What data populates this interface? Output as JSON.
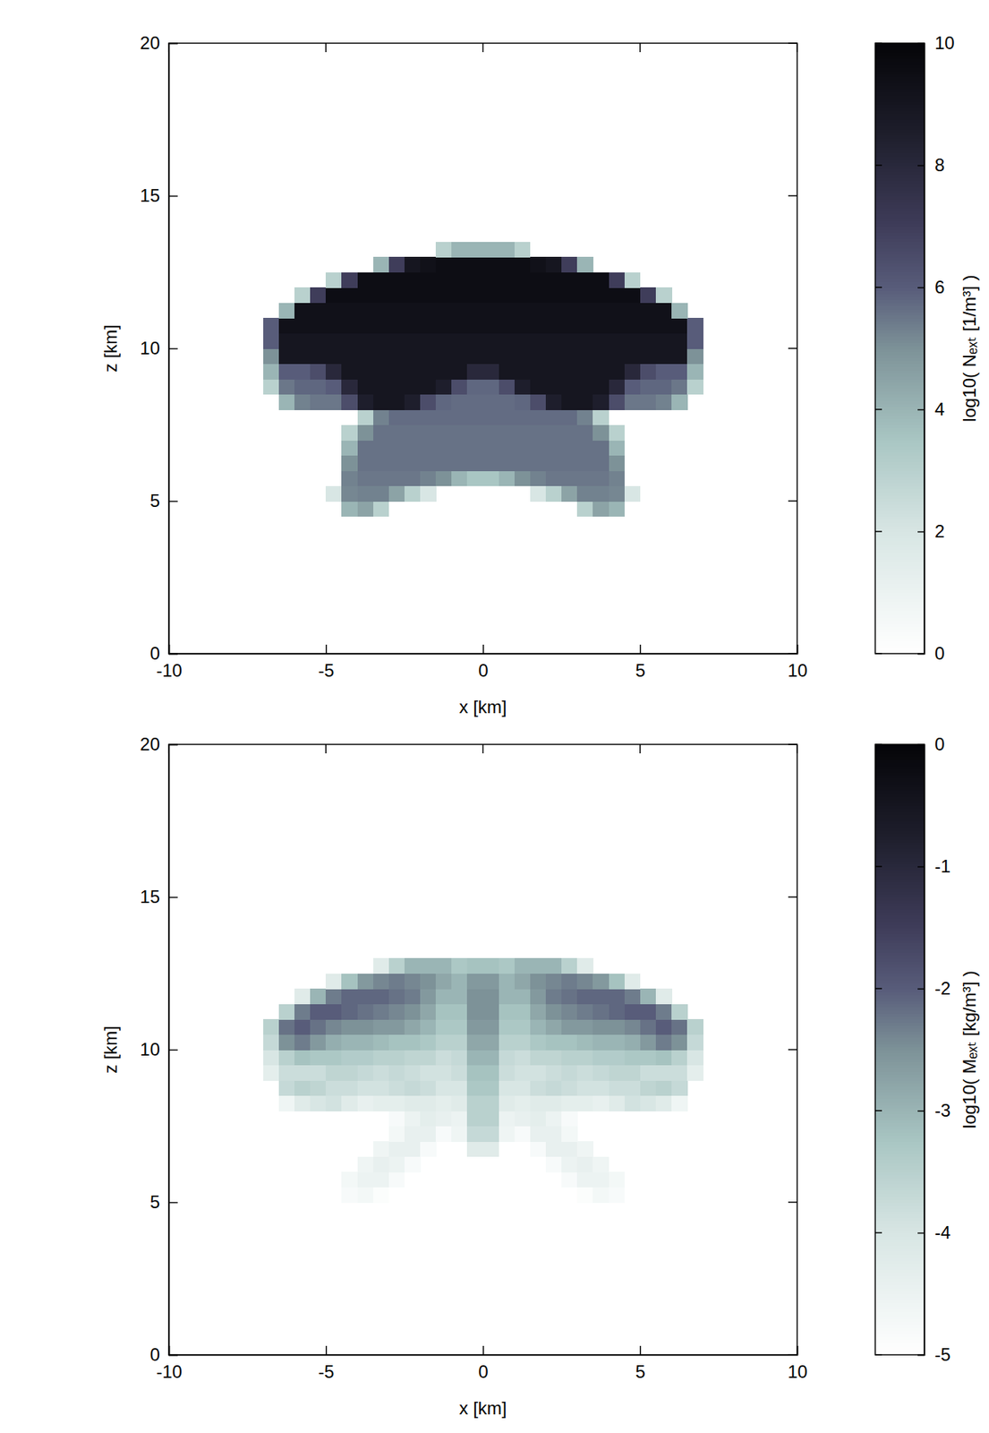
{
  "chart_data": [
    {
      "type": "heatmap",
      "xlabel": "x [km]",
      "ylabel": "z [km]",
      "xlim": [
        -10,
        10
      ],
      "ylim": [
        0,
        20
      ],
      "xticks": [
        -10,
        -5,
        0,
        5,
        10
      ],
      "yticks": [
        0,
        5,
        10,
        15,
        20
      ],
      "x": [
        -6.75,
        -6.25,
        -5.75,
        -5.25,
        -4.75,
        -4.25,
        -3.75,
        -3.25,
        -2.75,
        -2.25,
        -1.75,
        -1.25,
        -0.75,
        -0.25,
        0.25,
        0.75,
        1.25,
        1.75,
        2.25,
        2.75,
        3.25,
        3.75,
        4.25,
        4.75,
        5.25,
        5.75,
        6.25,
        6.75
      ],
      "y": [
        4.75,
        5.25,
        5.75,
        6.25,
        6.75,
        7.25,
        7.75,
        8.25,
        8.75,
        9.25,
        9.75,
        10.25,
        10.75,
        11.25,
        11.75,
        12.25,
        12.75,
        13.25
      ],
      "values": [
        [
          null,
          null,
          null,
          null,
          null,
          4,
          4.5,
          3,
          null,
          null,
          null,
          null,
          null,
          null,
          null,
          null,
          null,
          null,
          null,
          null,
          3,
          4.5,
          4,
          null,
          null,
          null,
          null,
          null
        ],
        [
          null,
          null,
          null,
          null,
          2,
          5.2,
          5.3,
          5.3,
          4.5,
          3,
          2,
          null,
          null,
          null,
          null,
          null,
          null,
          2,
          3,
          4.5,
          5.3,
          5.3,
          5.2,
          2,
          null,
          null,
          null,
          null
        ],
        [
          null,
          null,
          null,
          null,
          null,
          5.3,
          5.5,
          5.5,
          5.5,
          5.5,
          5.3,
          5,
          4,
          3.5,
          3.5,
          4,
          5,
          5.3,
          5.5,
          5.5,
          5.5,
          5.5,
          5.3,
          null,
          null,
          null,
          null,
          null
        ],
        [
          null,
          null,
          null,
          null,
          null,
          5,
          5.6,
          5.6,
          5.6,
          5.6,
          5.6,
          5.6,
          5.6,
          5.6,
          5.6,
          5.6,
          5.6,
          5.6,
          5.6,
          5.6,
          5.6,
          5.6,
          5,
          null,
          null,
          null,
          null,
          null
        ],
        [
          null,
          null,
          null,
          null,
          null,
          4,
          5.6,
          5.6,
          5.6,
          5.6,
          5.6,
          5.6,
          5.6,
          5.6,
          5.6,
          5.6,
          5.6,
          5.6,
          5.6,
          5.6,
          5.6,
          5.6,
          4,
          null,
          null,
          null,
          null,
          null
        ],
        [
          null,
          null,
          null,
          null,
          null,
          3,
          5,
          5.6,
          5.6,
          5.6,
          5.6,
          5.6,
          5.6,
          5.6,
          5.6,
          5.6,
          5.6,
          5.6,
          5.6,
          5.6,
          5.6,
          5,
          3,
          null,
          null,
          null,
          null,
          null
        ],
        [
          null,
          null,
          null,
          null,
          null,
          null,
          3,
          5.3,
          5.7,
          5.7,
          5.7,
          5.7,
          5.7,
          5.7,
          5.7,
          5.7,
          5.7,
          5.7,
          5.7,
          5.7,
          5.3,
          3,
          null,
          null,
          null,
          null,
          null,
          null
        ],
        [
          null,
          4,
          5.3,
          5.5,
          5.5,
          6.5,
          8.5,
          9,
          9,
          8.5,
          6.5,
          5.8,
          5.7,
          5.7,
          5.7,
          5.7,
          5.8,
          6.5,
          8.5,
          9,
          9,
          8.5,
          6.5,
          5.5,
          5.5,
          5.3,
          4,
          null
        ],
        [
          3,
          5.5,
          5.8,
          5.8,
          6,
          8,
          9,
          9,
          9,
          9,
          9,
          8.5,
          6.5,
          5.8,
          5.8,
          6.5,
          8.5,
          9,
          9,
          9,
          9,
          9,
          8,
          6,
          5.8,
          5.8,
          5.5,
          3
        ],
        [
          4,
          6,
          6,
          6.5,
          8,
          9,
          9,
          9,
          9,
          9,
          9,
          9,
          9,
          8,
          8,
          9,
          9,
          9,
          9,
          9,
          9,
          9,
          9,
          8,
          6.5,
          6,
          6,
          4
        ],
        [
          5,
          9,
          9,
          9,
          9,
          9,
          9,
          9,
          9,
          9,
          9,
          9,
          9,
          9,
          9,
          9,
          9,
          9,
          9,
          9,
          9,
          9,
          9,
          9,
          9,
          9,
          9,
          5
        ],
        [
          6,
          9,
          9,
          9,
          9,
          9,
          9,
          9,
          9,
          9,
          9,
          9,
          9,
          9,
          9,
          9,
          9,
          9,
          9,
          9,
          9,
          9,
          9,
          9,
          9,
          9,
          9,
          6
        ],
        [
          6,
          9.3,
          9.3,
          9.3,
          9.3,
          9.3,
          9.3,
          9.3,
          9.3,
          9.3,
          9.3,
          9.3,
          9.3,
          9.3,
          9.3,
          9.3,
          9.3,
          9.3,
          9.3,
          9.3,
          9.3,
          9.3,
          9.3,
          9.3,
          9.3,
          9.3,
          9.3,
          6
        ],
        [
          null,
          4,
          9.3,
          9.3,
          9.3,
          9.3,
          9.3,
          9.3,
          9.3,
          9.3,
          9.3,
          9.3,
          9.3,
          9.3,
          9.3,
          9.3,
          9.3,
          9.3,
          9.3,
          9.3,
          9.3,
          9.3,
          9.3,
          9.3,
          9.3,
          9.3,
          4,
          null
        ],
        [
          null,
          null,
          3,
          7,
          9.5,
          9.5,
          9.5,
          9.5,
          9.5,
          9.5,
          9.5,
          9.5,
          9.5,
          9.5,
          9.5,
          9.5,
          9.5,
          9.5,
          9.5,
          9.5,
          9.5,
          9.5,
          9.5,
          9.5,
          7,
          3,
          null,
          null
        ],
        [
          null,
          null,
          null,
          null,
          3,
          7,
          9.5,
          9.5,
          9.5,
          9.5,
          9.5,
          9.5,
          9.5,
          9.5,
          9.5,
          9.5,
          9.5,
          9.5,
          9.5,
          9.5,
          9.5,
          9.5,
          7,
          3,
          null,
          null,
          null,
          null
        ],
        [
          null,
          null,
          null,
          null,
          null,
          null,
          null,
          4,
          7,
          9,
          9.3,
          9.5,
          9.5,
          9.5,
          9.5,
          9.5,
          9.5,
          9.3,
          9,
          7,
          4,
          null,
          null,
          null,
          null,
          null,
          null,
          null
        ],
        [
          null,
          null,
          null,
          null,
          null,
          null,
          null,
          null,
          null,
          null,
          null,
          3,
          4,
          4,
          4,
          4,
          3,
          null,
          null,
          null,
          null,
          null,
          null,
          null,
          null,
          null,
          null,
          null
        ]
      ],
      "colorbar": {
        "label": "log10( Nₑₓₜ [1/m³] )",
        "range": [
          0,
          10
        ],
        "ticks": [
          0,
          2,
          4,
          6,
          8,
          10
        ]
      }
    },
    {
      "type": "heatmap",
      "xlabel": "x [km]",
      "ylabel": "z [km]",
      "xlim": [
        -10,
        10
      ],
      "ylim": [
        0,
        20
      ],
      "xticks": [
        -10,
        -5,
        0,
        5,
        10
      ],
      "yticks": [
        0,
        5,
        10,
        15,
        20
      ],
      "x": [
        -6.75,
        -6.25,
        -5.75,
        -5.25,
        -4.75,
        -4.25,
        -3.75,
        -3.25,
        -2.75,
        -2.25,
        -1.75,
        -1.25,
        -0.75,
        -0.25,
        0.25,
        0.75,
        1.25,
        1.75,
        2.25,
        2.75,
        3.25,
        3.75,
        4.25,
        4.75,
        5.25,
        5.75,
        6.25,
        6.75
      ],
      "y": [
        4.75,
        5.25,
        5.75,
        6.25,
        6.75,
        7.25,
        7.75,
        8.25,
        8.75,
        9.25,
        9.75,
        10.25,
        10.75,
        11.25,
        11.75,
        12.25,
        12.75,
        13.25
      ],
      "values": [
        [
          null,
          null,
          null,
          null,
          null,
          null,
          null,
          null,
          null,
          null,
          null,
          null,
          null,
          null,
          null,
          null,
          null,
          null,
          null,
          null,
          null,
          null,
          null,
          null,
          null,
          null,
          null,
          null
        ],
        [
          null,
          null,
          null,
          null,
          null,
          -4.8,
          -4.7,
          -4.9,
          null,
          null,
          null,
          null,
          null,
          null,
          null,
          null,
          null,
          null,
          null,
          null,
          -4.9,
          -4.7,
          -4.8,
          null,
          null,
          null,
          null,
          null
        ],
        [
          null,
          null,
          null,
          null,
          null,
          -4.7,
          -4.5,
          -4.5,
          -4.8,
          null,
          null,
          null,
          null,
          null,
          null,
          null,
          null,
          null,
          null,
          -4.8,
          -4.5,
          -4.5,
          -4.7,
          null,
          null,
          null,
          null,
          null
        ],
        [
          null,
          null,
          null,
          null,
          null,
          null,
          -4.6,
          -4.4,
          -4.5,
          -4.8,
          null,
          null,
          null,
          null,
          null,
          null,
          null,
          null,
          -4.8,
          -4.5,
          -4.4,
          -4.6,
          null,
          null,
          null,
          null,
          null,
          null
        ],
        [
          null,
          null,
          null,
          null,
          null,
          null,
          null,
          -4.6,
          -4.4,
          -4.4,
          -4.8,
          null,
          null,
          -4.2,
          -4.2,
          null,
          null,
          -4.8,
          -4.4,
          -4.4,
          -4.6,
          null,
          null,
          null,
          null,
          null,
          null,
          null
        ],
        [
          null,
          null,
          null,
          null,
          null,
          null,
          null,
          null,
          -4.7,
          -4.4,
          -4.4,
          -4.8,
          -4.6,
          -3.7,
          -3.7,
          -4.6,
          -4.8,
          -4.4,
          -4.4,
          -4.7,
          null,
          null,
          null,
          null,
          null,
          null,
          null,
          null
        ],
        [
          null,
          null,
          null,
          null,
          null,
          null,
          null,
          null,
          -4.8,
          -4.5,
          -4.3,
          -4.4,
          -4.5,
          -3.5,
          -3.5,
          -4.5,
          -4.4,
          -4.3,
          -4.5,
          -4.8,
          null,
          null,
          null,
          null,
          null,
          null,
          null,
          null
        ],
        [
          null,
          -4.6,
          -4.2,
          -4,
          -3.9,
          -4.2,
          -4.4,
          -4.3,
          -4.3,
          -4.2,
          -4.2,
          -4.3,
          -4.2,
          -3.5,
          -3.5,
          -4.2,
          -4.3,
          -4.2,
          -4.2,
          -4.3,
          -4.3,
          -4.4,
          -4.2,
          -3.9,
          -4,
          -4.2,
          -4.6,
          null
        ],
        [
          null,
          -3.7,
          -3.5,
          -3.6,
          -3.8,
          -3.8,
          -3.9,
          -3.9,
          -3.8,
          -3.7,
          -3.8,
          -4,
          -4,
          -3.3,
          -3.3,
          -4,
          -4,
          -3.8,
          -3.7,
          -3.8,
          -3.9,
          -3.9,
          -3.8,
          -3.8,
          -3.6,
          -3.5,
          -3.7,
          null
        ],
        [
          -4.3,
          -3.8,
          -3.8,
          -3.8,
          -3.6,
          -3.6,
          -3.7,
          -3.8,
          -3.7,
          -3.8,
          -3.9,
          -3.9,
          -3.8,
          -3.2,
          -3.2,
          -3.8,
          -3.9,
          -3.9,
          -3.8,
          -3.7,
          -3.8,
          -3.7,
          -3.6,
          -3.6,
          -3.8,
          -3.8,
          -3.8,
          -4.3
        ],
        [
          -4,
          -3.5,
          -3.2,
          -3.3,
          -3.3,
          -3.4,
          -3.4,
          -3.5,
          -3.5,
          -3.6,
          -3.6,
          -3.8,
          -3.7,
          -3,
          -3,
          -3.7,
          -3.8,
          -3.6,
          -3.6,
          -3.5,
          -3.5,
          -3.4,
          -3.4,
          -3.3,
          -3.3,
          -3.2,
          -3.5,
          -4
        ],
        [
          -3.7,
          -2.5,
          -2.3,
          -2.6,
          -2.9,
          -3,
          -3,
          -3.1,
          -3.2,
          -3.2,
          -3.3,
          -3.5,
          -3.5,
          -2.8,
          -2.8,
          -3.5,
          -3.5,
          -3.3,
          -3.2,
          -3.2,
          -3.1,
          -3,
          -3,
          -2.9,
          -2.6,
          -2.3,
          -2.5,
          -3.7
        ],
        [
          -3.5,
          -2.2,
          -2,
          -2.2,
          -2.4,
          -2.5,
          -2.5,
          -2.6,
          -2.6,
          -2.8,
          -3,
          -3.3,
          -3.3,
          -2.6,
          -2.6,
          -3.3,
          -3.3,
          -3,
          -2.8,
          -2.6,
          -2.6,
          -2.5,
          -2.5,
          -2.4,
          -2.2,
          -2,
          -2.2,
          -3.5
        ],
        [
          null,
          -3.5,
          -2.3,
          -2,
          -2,
          -2.1,
          -2.2,
          -2.3,
          -2.4,
          -2.5,
          -2.8,
          -3.2,
          -3.2,
          -2.5,
          -2.5,
          -3.2,
          -3.2,
          -2.8,
          -2.5,
          -2.4,
          -2.3,
          -2.2,
          -2.1,
          -2,
          -2,
          -2.3,
          -3.5,
          null
        ],
        [
          null,
          null,
          -4.2,
          -3,
          -2.3,
          -2.1,
          -2.1,
          -2.1,
          -2.2,
          -2.3,
          -2.6,
          -3,
          -3,
          -2.5,
          -2.5,
          -3,
          -3,
          -2.6,
          -2.3,
          -2.2,
          -2.1,
          -2.1,
          -2.1,
          -2.3,
          -3,
          -4.2,
          null,
          null
        ],
        [
          null,
          null,
          null,
          null,
          -4.2,
          -3.2,
          -2.6,
          -2.4,
          -2.3,
          -2.4,
          -2.5,
          -2.8,
          -3,
          -2.6,
          -2.6,
          -3,
          -2.8,
          -2.5,
          -2.4,
          -2.3,
          -2.4,
          -2.6,
          -3.2,
          -4.2,
          null,
          null,
          null,
          null
        ],
        [
          null,
          null,
          null,
          null,
          null,
          null,
          null,
          -4.2,
          -3.5,
          -3,
          -3,
          -3,
          -3.3,
          -3.2,
          -3.2,
          -3.3,
          -3,
          -3,
          -3,
          -3.5,
          -4.2,
          null,
          null,
          null,
          null,
          null,
          null,
          null
        ],
        [
          null,
          null,
          null,
          null,
          null,
          null,
          null,
          null,
          null,
          null,
          null,
          null,
          null,
          null,
          null,
          null,
          null,
          null,
          null,
          null,
          null,
          null,
          null,
          null,
          null,
          null,
          null,
          null
        ]
      ],
      "colorbar": {
        "label": "log10( Mₑₓₜ [kg/m³] )",
        "range": [
          -5,
          0
        ],
        "ticks": [
          -5,
          -4,
          -3,
          -2,
          -1,
          0
        ]
      }
    }
  ]
}
